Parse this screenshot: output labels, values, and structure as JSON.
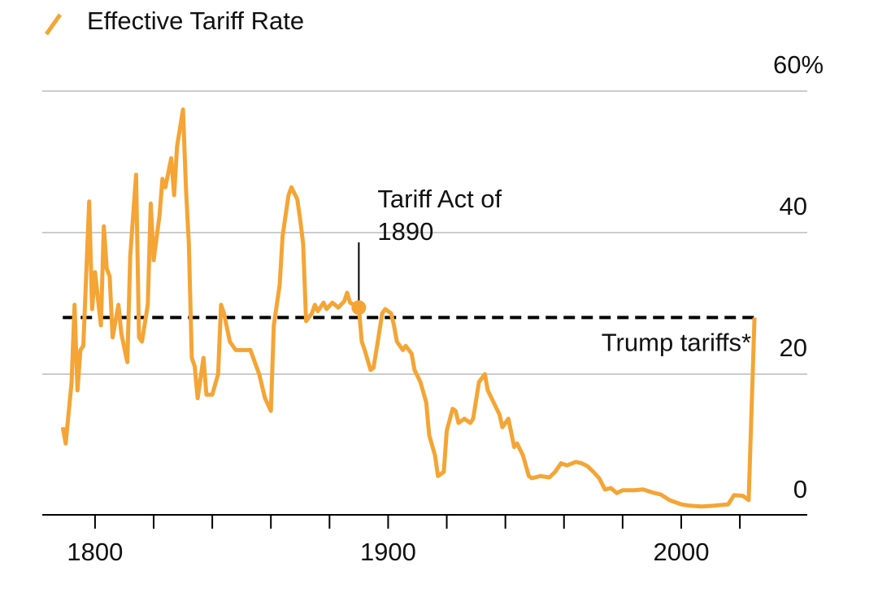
{
  "chart_data": {
    "type": "line",
    "x": [
      1789,
      1790,
      1792,
      1793,
      1794,
      1795,
      1796,
      1798,
      1799,
      1800,
      1802,
      1803,
      1804,
      1805,
      1806,
      1808,
      1809,
      1811,
      1812,
      1814,
      1815,
      1816,
      1818,
      1819,
      1820,
      1822,
      1823,
      1824,
      1826,
      1827,
      1828,
      1830,
      1831,
      1832,
      1833,
      1834,
      1835,
      1837,
      1838,
      1840,
      1842,
      1843,
      1844,
      1846,
      1848,
      1851,
      1853,
      1856,
      1858,
      1860,
      1861,
      1863,
      1864,
      1866,
      1867,
      1869,
      1870,
      1871,
      1872,
      1874,
      1875,
      1876,
      1878,
      1879,
      1881,
      1883,
      1885,
      1886,
      1887,
      1890,
      1891,
      1892,
      1894,
      1895,
      1896,
      1898,
      1899,
      1901,
      1902,
      1903,
      1905,
      1906,
      1908,
      1909,
      1911,
      1913,
      1914,
      1916,
      1917,
      1919,
      1920,
      1922,
      1923,
      1924,
      1926,
      1928,
      1929,
      1931,
      1933,
      1934,
      1936,
      1938,
      1939,
      1941,
      1943,
      1944,
      1946,
      1948,
      1949,
      1952,
      1955,
      1957,
      1959,
      1961,
      1964,
      1966,
      1968,
      1970,
      1972,
      1974,
      1976,
      1978,
      1980,
      1984,
      1987,
      1990,
      1993,
      1996,
      2000,
      2003,
      2007,
      2011,
      2016,
      2018,
      2021,
      2023,
      2025
    ],
    "series": [
      {
        "name": "Effective Tariff Rate",
        "color": "#f4a535",
        "values": [
          12.5,
          10.2,
          18.9,
          29.8,
          17.7,
          23.4,
          24,
          44.4,
          29.2,
          34.4,
          26.9,
          40.9,
          34.9,
          33.8,
          25.2,
          29.8,
          25.7,
          21.7,
          36.7,
          48.2,
          25.2,
          24.6,
          29.8,
          44.1,
          36.1,
          42.4,
          47.6,
          46.4,
          50.5,
          45.3,
          52.2,
          57.4,
          46.4,
          38.4,
          22.3,
          21.1,
          16.6,
          22.3,
          17.1,
          17.1,
          20,
          29.8,
          28.6,
          24.6,
          23.4,
          23.4,
          23.4,
          20,
          16.6,
          14.8,
          26.9,
          32.6,
          39.5,
          45.3,
          46.4,
          44.7,
          41.8,
          38.4,
          27.5,
          28.6,
          29.8,
          28.9,
          30.1,
          29.2,
          30.1,
          29.4,
          30.3,
          31.5,
          30.1,
          29.4,
          24.6,
          23.4,
          20.6,
          20.9,
          23.4,
          28.6,
          29.2,
          28.6,
          26.9,
          24.6,
          23.4,
          24,
          22.9,
          20.6,
          18.9,
          16,
          11.4,
          8.5,
          5.6,
          6.2,
          12,
          15.1,
          14.8,
          13.1,
          13.7,
          13.1,
          13.7,
          18.9,
          20,
          17.7,
          16,
          14.3,
          12.5,
          13.7,
          9.7,
          10.2,
          8.5,
          5.6,
          5.3,
          5.6,
          5.4,
          6.2,
          7.4,
          7.1,
          7.6,
          7.4,
          7,
          6.2,
          5.3,
          3.7,
          3.9,
          3.2,
          3.6,
          3.6,
          3.7,
          3.3,
          3,
          2.2,
          1.6,
          1.4,
          1.3,
          1.4,
          1.6,
          2.9,
          2.8,
          2.2,
          28
        ]
      }
    ],
    "xlim": [
      1782,
      2043
    ],
    "xticks": [
      1800,
      1900,
      2000
    ],
    "xminor_ticks": [
      1820,
      1840,
      1860,
      1880,
      1920,
      1940,
      1960,
      1980,
      2020
    ],
    "ylim": [
      0,
      60
    ],
    "yticks": [
      0,
      20,
      40,
      {
        "value": 60,
        "label": "60%"
      }
    ],
    "grid": true,
    "reference_line": {
      "label": "Trump tariffs*",
      "value": 28,
      "x_start": 1789,
      "x_end": 2025,
      "color": "#000000"
    },
    "annotation": {
      "lines": [
        "Tariff Act of",
        "1890"
      ],
      "x": 1890,
      "y": 29.4
    }
  }
}
